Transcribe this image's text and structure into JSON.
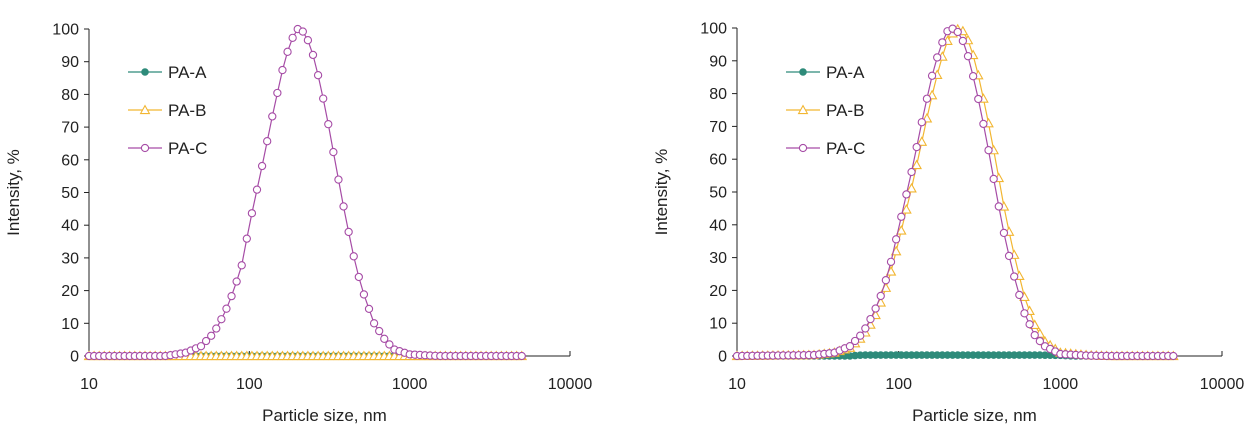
{
  "chart_data": [
    {
      "type": "line",
      "xlabel": "Particle size, nm",
      "ylabel": "Intensity, %",
      "xscale": "log",
      "xlim": [
        10,
        10000
      ],
      "ylim": [
        0,
        100
      ],
      "xticks": [
        "10",
        "100",
        "1000",
        "10000"
      ],
      "yticks": [
        "0",
        "10",
        "20",
        "30",
        "40",
        "50",
        "60",
        "70",
        "80",
        "90",
        "100"
      ],
      "legend_position": "top-left",
      "series": [
        {
          "name": "PA-A",
          "color": "#2e8b7a",
          "marker": "filled-circle",
          "x": [
            10,
            5000
          ],
          "y": [
            0,
            0
          ]
        },
        {
          "name": "PA-B",
          "color": "#f2b632",
          "marker": "open-triangle",
          "x": [
            10,
            5000
          ],
          "y": [
            0,
            0
          ]
        },
        {
          "name": "PA-C",
          "color": "#a64ca6",
          "marker": "open-circle",
          "x": [
            10,
            30,
            40,
            50,
            60,
            70,
            80,
            90,
            100,
            120,
            140,
            160,
            180,
            200,
            220,
            240,
            260,
            300,
            350,
            400,
            450,
            500,
            600,
            700,
            800,
            1000,
            1500,
            2000,
            3000,
            4000,
            5000
          ],
          "y": [
            0,
            0,
            1,
            3,
            7,
            13,
            20,
            28,
            40,
            58,
            74,
            87,
            96,
            100,
            99,
            95,
            89,
            75,
            57,
            42,
            30,
            21,
            10,
            5,
            2,
            0.5,
            0,
            0,
            0,
            0,
            0
          ]
        }
      ]
    },
    {
      "type": "line",
      "xlabel": "Particle size, nm",
      "ylabel": "Intensity, %",
      "xscale": "log",
      "xlim": [
        10,
        10000
      ],
      "ylim": [
        0,
        100
      ],
      "xticks": [
        "10",
        "100",
        "1000",
        "10000"
      ],
      "yticks": [
        "0",
        "10",
        "20",
        "30",
        "40",
        "50",
        "60",
        "70",
        "80",
        "90",
        "100"
      ],
      "legend_position": "top-left",
      "series": [
        {
          "name": "PA-A",
          "color": "#2e8b7a",
          "marker": "filled-circle",
          "x": [
            10,
            40,
            50,
            60,
            80,
            100,
            200,
            400,
            700,
            1000,
            1200,
            1500,
            5000
          ],
          "y": [
            0,
            0,
            0,
            0.3,
            0.3,
            0.3,
            0.3,
            0.3,
            0.3,
            0.2,
            0,
            0,
            0
          ]
        },
        {
          "name": "PA-B",
          "color": "#f2b632",
          "marker": "open-triangle",
          "x": [
            10,
            30,
            40,
            50,
            60,
            70,
            80,
            90,
            100,
            120,
            140,
            160,
            180,
            200,
            220,
            240,
            260,
            280,
            300,
            350,
            400,
            450,
            500,
            600,
            700,
            800,
            1000,
            1500,
            2000,
            3000,
            5000
          ],
          "y": [
            0,
            0.3,
            1,
            2.5,
            6,
            11,
            18,
            26,
            35,
            51,
            66,
            79,
            89,
            96,
            99,
            100,
            98,
            94,
            89,
            74,
            59,
            45,
            34,
            18,
            9,
            4.5,
            1,
            0.2,
            0,
            0,
            0
          ]
        },
        {
          "name": "PA-C",
          "color": "#a64ca6",
          "marker": "open-circle",
          "x": [
            10,
            30,
            40,
            50,
            60,
            70,
            80,
            90,
            100,
            120,
            140,
            160,
            180,
            200,
            220,
            240,
            260,
            280,
            300,
            350,
            400,
            450,
            500,
            600,
            700,
            800,
            1000,
            1500,
            2000,
            3000,
            5000
          ],
          "y": [
            0,
            0.3,
            1,
            3,
            7,
            13,
            20,
            29,
            39,
            56,
            72,
            85,
            94,
            99,
            100,
            98,
            94,
            88,
            82,
            66,
            50,
            37,
            27,
            13,
            6,
            3,
            0.6,
            0.1,
            0,
            0,
            0
          ]
        }
      ]
    }
  ]
}
